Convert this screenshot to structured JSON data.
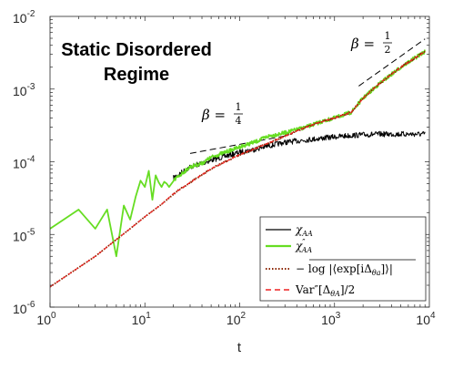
{
  "chart_data": {
    "type": "line",
    "title": "Static Disordered Regime",
    "title_lines": [
      "Static Disordered",
      "Regime"
    ],
    "xlabel": "t",
    "ylabel": "",
    "xscale": "log",
    "yscale": "log",
    "xlim": [
      1,
      10000
    ],
    "ylim": [
      1e-06,
      0.01
    ],
    "x_ticks": [
      {
        "base": "10",
        "exp": "0"
      },
      {
        "base": "10",
        "exp": "1"
      },
      {
        "base": "10",
        "exp": "2"
      },
      {
        "base": "10",
        "exp": "3"
      },
      {
        "base": "10",
        "exp": "4"
      }
    ],
    "y_ticks": [
      {
        "base": "10",
        "exp": "-6"
      },
      {
        "base": "10",
        "exp": "-5"
      },
      {
        "base": "10",
        "exp": "-4"
      },
      {
        "base": "10",
        "exp": "-3"
      },
      {
        "base": "10",
        "exp": "-2"
      }
    ],
    "grid": false,
    "legend_position": "bottom-right",
    "annotations": [
      {
        "text": "β =",
        "num": "1",
        "den": "4"
      },
      {
        "text": "β =",
        "num": "1",
        "den": "2"
      }
    ],
    "reference_lines": [
      {
        "name": "slope 1/4",
        "x": [
          30,
          320
        ],
        "y": [
          0.00013,
          0.00023
        ],
        "color": "#000000",
        "style": "dashed"
      },
      {
        "name": "slope 1/2",
        "x": [
          1800,
          9000
        ],
        "y": [
          0.0011,
          0.0049
        ],
        "color": "#000000",
        "style": "dashed"
      }
    ],
    "series": [
      {
        "name": "χ_AA",
        "legend": {
          "main": "χ",
          "sub": "AA",
          "sup": ""
        },
        "color": "#000000",
        "style": "solid",
        "x": [
          20,
          30,
          50,
          80,
          100,
          150,
          200,
          300,
          500,
          1000,
          1500,
          2000,
          3000,
          5000,
          9000
        ],
        "y": [
          6e-05,
          8.5e-05,
          0.000105,
          0.000125,
          0.000135,
          0.00015,
          0.000165,
          0.000185,
          0.0002,
          0.00022,
          0.00023,
          0.000235,
          0.00024,
          0.00024,
          0.00024
        ]
      },
      {
        "name": "χ″_AA",
        "legend": {
          "main": "χ",
          "sub": "AA",
          "sup": "″"
        },
        "color": "#66dd22",
        "style": "solid",
        "x": [
          1,
          2,
          3,
          4,
          5,
          6,
          7,
          8,
          9,
          10,
          11,
          12,
          13,
          14,
          15,
          16,
          17,
          18,
          20,
          25,
          30,
          40,
          50,
          70,
          100,
          150,
          200,
          300,
          500,
          700,
          1000,
          1500,
          2000,
          3000,
          5000,
          9000
        ],
        "y": [
          1.2e-05,
          2.2e-05,
          1.2e-05,
          2.2e-05,
          5e-06,
          2.5e-05,
          1.6e-05,
          3.3e-05,
          5.5e-05,
          4.5e-05,
          7.5e-05,
          3e-05,
          6.5e-05,
          5.2e-05,
          4.5e-05,
          5.3e-05,
          5e-05,
          4.5e-05,
          5.5e-05,
          7e-05,
          8.5e-05,
          9.5e-05,
          0.000115,
          0.000135,
          0.00016,
          0.00019,
          0.000225,
          0.00025,
          0.0003,
          0.00035,
          0.0004,
          0.00048,
          0.00075,
          0.0012,
          0.002,
          0.0033
        ]
      },
      {
        "name": "−log|⟨exp[iΔθa]⟩|",
        "legend": {
          "main": "− log |⟨exp[iΔ",
          "sub": "θa",
          "sup": "",
          "tail": "]⟩|"
        },
        "color": "#8b2500",
        "style": "dotted",
        "x": [
          1,
          2,
          3,
          5,
          7,
          10,
          15,
          20,
          30,
          50,
          70,
          100,
          150,
          200,
          300,
          500,
          700,
          1000,
          1500,
          2000,
          3000,
          5000,
          9000
        ],
        "y": [
          1.9e-06,
          3.5e-06,
          5e-06,
          8.5e-06,
          1.2e-05,
          1.75e-05,
          2.6e-05,
          3.6e-05,
          5.2e-05,
          8e-05,
          0.0001,
          0.000125,
          0.000155,
          0.00018,
          0.000225,
          0.0003,
          0.00035,
          0.0004,
          0.00048,
          0.00075,
          0.0012,
          0.002,
          0.0033
        ]
      },
      {
        "name": "Var″[Δθa]/2",
        "legend": {
          "main": "Var″[Δ",
          "sub": "θA",
          "sup": "",
          "tail": "]/2"
        },
        "color": "#ee2222",
        "style": "dashed",
        "x": [
          1,
          2,
          3,
          5,
          7,
          10,
          15,
          20,
          30,
          50,
          70,
          100,
          150,
          200,
          300,
          500,
          700,
          1000,
          1500,
          2000,
          3000,
          5000,
          9000
        ],
        "y": [
          1.9e-06,
          3.5e-06,
          5e-06,
          8.5e-06,
          1.2e-05,
          1.75e-05,
          2.6e-05,
          3.6e-05,
          5.2e-05,
          8e-05,
          0.0001,
          0.000125,
          0.000155,
          0.00018,
          0.000225,
          0.0003,
          0.00035,
          0.0004,
          0.00048,
          0.00075,
          0.0012,
          0.002,
          0.0033
        ]
      }
    ]
  }
}
